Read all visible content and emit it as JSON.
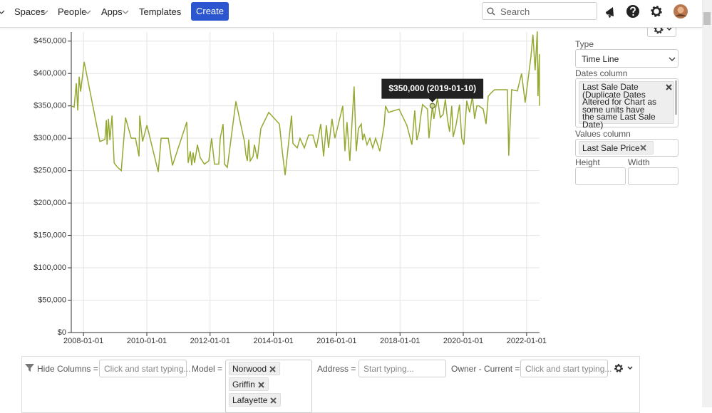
{
  "nav": {
    "items": [
      "Spaces",
      "People",
      "Apps",
      "Templates"
    ],
    "create": "Create",
    "search": "Search"
  },
  "chart_data": {
    "type": "line",
    "color": "#94a931",
    "x": [
      "2007-08-13",
      "2007-09-15",
      "2007-10-10",
      "2007-10-27",
      "2007-11-12",
      "2007-11-29",
      "2008-01-09",
      "2008-07-08",
      "2008-09-04",
      "2008-09-21",
      "2008-09-29",
      "2008-10-15",
      "2008-11-01",
      "2008-11-25",
      "2008-12-20",
      "2009-01-22",
      "2009-03-12",
      "2009-04-30",
      "2009-07-05",
      "2009-08-23",
      "2009-10-03",
      "2009-10-11",
      "2009-11-13",
      "2010-01-02",
      "2010-05-13",
      "2010-06-15",
      "2010-09-05",
      "2010-10-24",
      "2011-04-07",
      "2011-04-23",
      "2011-05-18",
      "2011-06-03",
      "2011-06-19",
      "2011-07-06",
      "2011-08-08",
      "2011-09-09",
      "2011-10-28",
      "2011-12-17",
      "2012-01-19",
      "2012-02-21",
      "2012-04-10",
      "2012-04-27",
      "2012-05-30",
      "2012-06-16",
      "2012-07-18",
      "2012-10-25",
      "2012-12-22",
      "2013-02-01",
      "2013-02-17",
      "2013-03-06",
      "2013-03-22",
      "2013-04-08",
      "2013-05-11",
      "2013-05-27",
      "2013-06-29",
      "2013-08-09",
      "2013-11-08",
      "2014-03-11",
      "2014-04-13",
      "2014-05-16",
      "2014-07-29",
      "2014-08-14",
      "2014-10-03",
      "2014-11-04",
      "2014-12-24",
      "2015-02-11",
      "2015-04-01",
      "2015-05-12",
      "2015-07-01",
      "2015-08-03",
      "2015-09-04",
      "2015-09-29",
      "2015-11-08",
      "2015-12-11",
      "2016-01-21",
      "2016-03-11",
      "2016-04-05",
      "2016-04-29",
      "2016-06-01",
      "2016-07-20",
      "2016-08-14",
      "2016-09-08",
      "2016-10-11",
      "2016-10-27",
      "2016-11-13",
      "2016-12-16",
      "2017-01-18",
      "2017-02-20",
      "2017-03-25",
      "2017-05-13",
      "2017-07-02",
      "2017-07-18",
      "2017-08-20",
      "2017-12-21",
      "2018-03-21",
      "2018-05-18",
      "2018-06-20",
      "2018-07-14",
      "2018-08-08",
      "2018-08-24",
      "2018-09-18",
      "2018-11-14",
      "2018-12-01",
      "2019-01-10",
      "2019-01-27",
      "2019-03-09",
      "2019-04-11",
      "2019-05-14",
      "2019-06-08",
      "2019-07-02",
      "2019-07-27",
      "2019-08-21",
      "2019-09-06",
      "2019-10-09",
      "2019-11-19",
      "2019-12-14",
      "2020-01-08",
      "2020-02-10",
      "2020-03-14",
      "2020-04-16",
      "2020-05-11",
      "2020-06-05",
      "2020-06-30",
      "2020-08-18",
      "2020-09-20",
      "2020-10-15",
      "2020-11-17",
      "2020-12-28",
      "2021-05-24",
      "2021-06-09",
      "2021-07-12",
      "2021-09-16",
      "2021-11-04",
      "2021-12-15",
      "2022-02-19",
      "2022-03-15",
      "2022-04-09",
      "2022-05-04",
      "2022-05-12",
      "2022-05-28",
      "2022-05-30"
    ],
    "values": [
      350000,
      348000,
      385000,
      343000,
      395000,
      372000,
      418000,
      295000,
      298000,
      328000,
      290000,
      330000,
      297000,
      335000,
      262000,
      256000,
      250000,
      332000,
      300000,
      300000,
      272000,
      335000,
      295000,
      320000,
      248000,
      300000,
      300000,
      258000,
      325000,
      262000,
      280000,
      258000,
      278000,
      262000,
      290000,
      270000,
      260000,
      265000,
      300000,
      260000,
      260000,
      300000,
      322000,
      260000,
      255000,
      357000,
      320000,
      295000,
      275000,
      265000,
      298000,
      265000,
      272000,
      290000,
      268000,
      315000,
      340000,
      322000,
      280000,
      243000,
      335000,
      292000,
      285000,
      300000,
      285000,
      305000,
      305000,
      285000,
      322000,
      272000,
      320000,
      285000,
      330000,
      300000,
      322000,
      350000,
      280000,
      325000,
      265000,
      380000,
      280000,
      315000,
      322000,
      297000,
      307000,
      290000,
      300000,
      285000,
      300000,
      280000,
      320000,
      350000,
      340000,
      345000,
      320000,
      290000,
      343000,
      297000,
      310000,
      330000,
      352000,
      345000,
      300000,
      350000,
      330000,
      362000,
      332000,
      337000,
      360000,
      330000,
      310000,
      350000,
      302000,
      320000,
      352000,
      300000,
      290000,
      358000,
      340000,
      365000,
      330000,
      350000,
      350000,
      345000,
      322000,
      365000,
      370000,
      375000,
      375000,
      273000,
      375000,
      373000,
      400000,
      355000,
      425000,
      460000,
      405000,
      465000,
      365000,
      430000,
      350000
    ],
    "xlim": [
      "2007-08-13",
      "2022-05-30"
    ],
    "xticks": [
      "2008-01-01",
      "2010-01-01",
      "2012-01-01",
      "2014-01-01",
      "2016-01-01",
      "2018-01-01",
      "2020-01-01",
      "2022-01-01"
    ],
    "ylim": [
      0,
      464000
    ],
    "yticks": [
      {
        "value": 0,
        "label": "$0"
      },
      {
        "value": 50000,
        "label": "$50,000"
      },
      {
        "value": 100000,
        "label": "$100,000"
      },
      {
        "value": 150000,
        "label": "$150,000"
      },
      {
        "value": 200000,
        "label": "$200,000"
      },
      {
        "value": 250000,
        "label": "$250,000"
      },
      {
        "value": 300000,
        "label": "$300,000"
      },
      {
        "value": 350000,
        "label": "$350,000"
      },
      {
        "value": 400000,
        "label": "$400,000"
      },
      {
        "value": 450000,
        "label": "$450,000"
      }
    ],
    "grid": true,
    "tooltip": {
      "x": "2019-01-10",
      "value": 350000,
      "label": "$350,000 (2019-01-10)"
    }
  },
  "settings": {
    "type_label": "Type",
    "type_value": "Time Line",
    "dates_label": "Dates column",
    "dates_tag": "Last Sale Date (Duplicate Dates Altered for Chart as some units have the same Last Sale Date)",
    "values_label": "Values column",
    "values_tag": "Last Sale Price",
    "height_label": "Height",
    "width_label": "Width"
  },
  "filters": {
    "hide_label": "Hide Columns =",
    "hide_placeholder": "Click and start typing...",
    "model_label": "Model =",
    "model_tags": [
      "Norwood",
      "Griffin",
      "Lafayette"
    ],
    "address_label": "Address =",
    "address_placeholder": "Start typing...",
    "owner_label": "Owner - Current =",
    "owner_placeholder": "Click and start typing..."
  }
}
